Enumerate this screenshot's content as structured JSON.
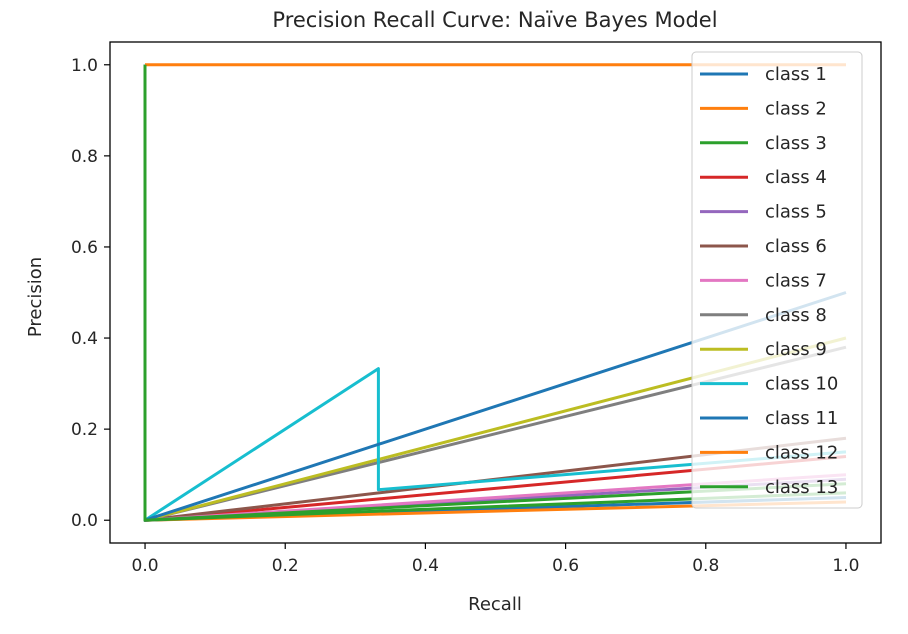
{
  "chart_data": {
    "type": "line",
    "title": "Precision Recall Curve: Naïve Bayes Model",
    "xlabel": "Recall",
    "ylabel": "Precision",
    "xlim": [
      -0.05,
      1.05
    ],
    "ylim": [
      -0.05,
      1.05
    ],
    "xticks": [
      0.0,
      0.2,
      0.4,
      0.6,
      0.8,
      1.0
    ],
    "yticks": [
      0.0,
      0.2,
      0.4,
      0.6,
      0.8,
      1.0
    ],
    "xtick_labels": [
      "0.0",
      "0.2",
      "0.4",
      "0.6",
      "0.8",
      "1.0"
    ],
    "ytick_labels": [
      "0.0",
      "0.2",
      "0.4",
      "0.6",
      "0.8",
      "1.0"
    ],
    "grid": false,
    "legend_position": "upper right",
    "series": [
      {
        "name": "class 1",
        "color": "#1f77b4",
        "x": [
          0,
          0,
          1
        ],
        "y": [
          1,
          0,
          0.05
        ]
      },
      {
        "name": "class 2",
        "color": "#ff7f0e",
        "x": [
          0,
          0,
          1
        ],
        "y": [
          1,
          0,
          0.04
        ]
      },
      {
        "name": "class 3",
        "color": "#2ca02c",
        "x": [
          0,
          0,
          1
        ],
        "y": [
          1,
          0,
          0.06
        ]
      },
      {
        "name": "class 4",
        "color": "#d62728",
        "x": [
          0,
          0,
          1
        ],
        "y": [
          1,
          0,
          0.14
        ]
      },
      {
        "name": "class 5",
        "color": "#9467bd",
        "x": [
          0,
          0,
          1
        ],
        "y": [
          1,
          0,
          0.09
        ]
      },
      {
        "name": "class 6",
        "color": "#8c564b",
        "x": [
          0,
          0,
          1
        ],
        "y": [
          1,
          0,
          0.18
        ]
      },
      {
        "name": "class 7",
        "color": "#e377c2",
        "x": [
          0,
          0,
          1
        ],
        "y": [
          1,
          0,
          0.1
        ]
      },
      {
        "name": "class 8",
        "color": "#7f7f7f",
        "x": [
          0,
          0,
          1
        ],
        "y": [
          1,
          0,
          0.38
        ]
      },
      {
        "name": "class 9",
        "color": "#bcbd22",
        "x": [
          0,
          0,
          1
        ],
        "y": [
          1,
          0,
          0.4
        ]
      },
      {
        "name": "class 10",
        "color": "#17becf",
        "x": [
          0,
          0,
          0.333,
          0.333,
          1
        ],
        "y": [
          1,
          0,
          0.333,
          0.067,
          0.15
        ]
      },
      {
        "name": "class 11",
        "color": "#1f77b4",
        "x": [
          0,
          0,
          1
        ],
        "y": [
          1,
          0,
          0.5
        ]
      },
      {
        "name": "class 12",
        "color": "#ff7f0e",
        "x": [
          0,
          0,
          1
        ],
        "y": [
          1,
          1,
          1
        ]
      },
      {
        "name": "class 13",
        "color": "#2ca02c",
        "x": [
          0,
          0,
          1
        ],
        "y": [
          1,
          0,
          0.08
        ]
      }
    ]
  }
}
